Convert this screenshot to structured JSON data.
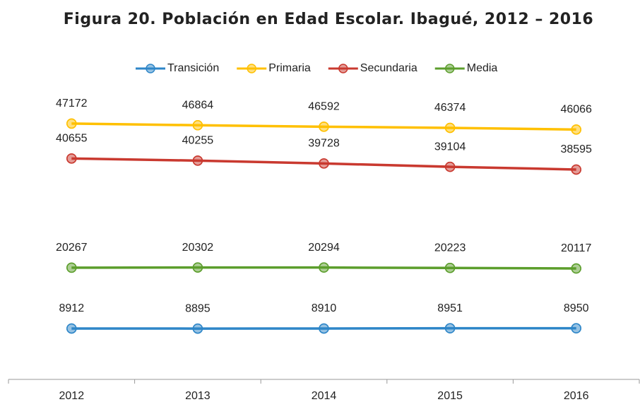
{
  "chart_data": {
    "type": "line",
    "title": "Figura 20. Población en Edad Escolar. Ibagué, 2012 – 2016",
    "categories": [
      "2012",
      "2013",
      "2014",
      "2015",
      "2016"
    ],
    "series": [
      {
        "name": "Transición",
        "color": "#2e86c8",
        "values": [
          8912,
          8895,
          8910,
          8951,
          8950
        ]
      },
      {
        "name": "Primaria",
        "color": "#ffc000",
        "values": [
          47172,
          46864,
          46592,
          46374,
          46066
        ]
      },
      {
        "name": "Secundaria",
        "color": "#c9392f",
        "values": [
          40655,
          40255,
          39728,
          39104,
          38595
        ]
      },
      {
        "name": "Media",
        "color": "#5c9e2c",
        "values": [
          20267,
          20302,
          20294,
          20223,
          20117
        ]
      }
    ],
    "ylim": [
      0,
      50000
    ]
  }
}
